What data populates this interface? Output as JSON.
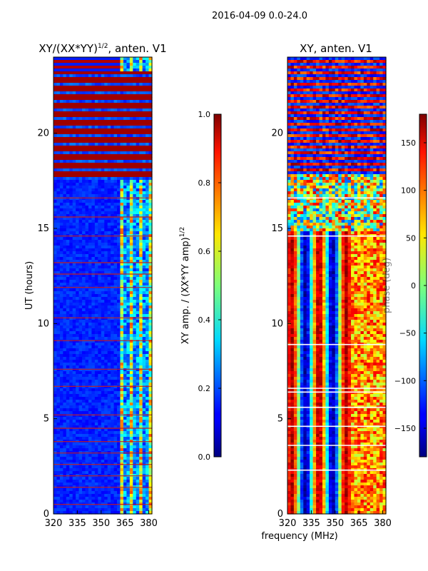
{
  "suptitle": "2016-04-09 0.0-24.0",
  "chart_data": [
    {
      "type": "heatmap",
      "title_main": "XY/(XX*YY)",
      "title_sup": "1/2",
      "title_tail": ", anten. V1",
      "xlabel": "",
      "ylabel": "UT (hours)",
      "xlim": [
        320,
        382
      ],
      "ylim": [
        0,
        24
      ],
      "xticks": [
        320,
        335,
        350,
        365,
        380
      ],
      "yticks": [
        0,
        5,
        10,
        15,
        20
      ],
      "colorbar": {
        "label_main": "XY amp. / (XX*YY amp)",
        "label_sup": "1/2",
        "range": [
          0.0,
          1.0
        ],
        "ticks": [
          "0.0",
          "0.2",
          "0.4",
          "0.6",
          "0.8",
          "1.0"
        ],
        "tick_values": [
          0.0,
          0.2,
          0.4,
          0.6,
          0.8,
          1.0
        ]
      },
      "features": {
        "saturated_hours": [
          17.6,
          23.3
        ],
        "flag_lines_hours": [
          0.5,
          1.4,
          2.0,
          2.6,
          3.2,
          3.8,
          4.5,
          5.2,
          6.7,
          7.6,
          9.1,
          10.3,
          11.9,
          12.6,
          13.2,
          14.6,
          15.6,
          16.6
        ]
      }
    },
    {
      "type": "heatmap",
      "title_main": "XY, anten. V1",
      "xlabel": "frequency (MHz)",
      "ylabel": "",
      "xlim": [
        320,
        382
      ],
      "ylim": [
        0,
        24
      ],
      "xticks": [
        320,
        335,
        350,
        365,
        380
      ],
      "yticks": [
        0,
        5,
        10,
        15,
        20
      ],
      "colorbar": {
        "label_main": "phase (deg)",
        "range": [
          -180,
          180
        ],
        "ticks": [
          "−150",
          "−100",
          "−50",
          "0",
          "50",
          "100",
          "150"
        ],
        "tick_values": [
          -150,
          -100,
          -50,
          0,
          50,
          100,
          150
        ]
      },
      "features": {
        "noisy_hours": [
          17.8,
          24.0
        ],
        "flag_lines_hours": [
          2.3,
          3.6,
          4.6,
          5.6,
          6.4,
          6.6,
          8.9,
          14.6,
          16.6
        ]
      }
    }
  ]
}
